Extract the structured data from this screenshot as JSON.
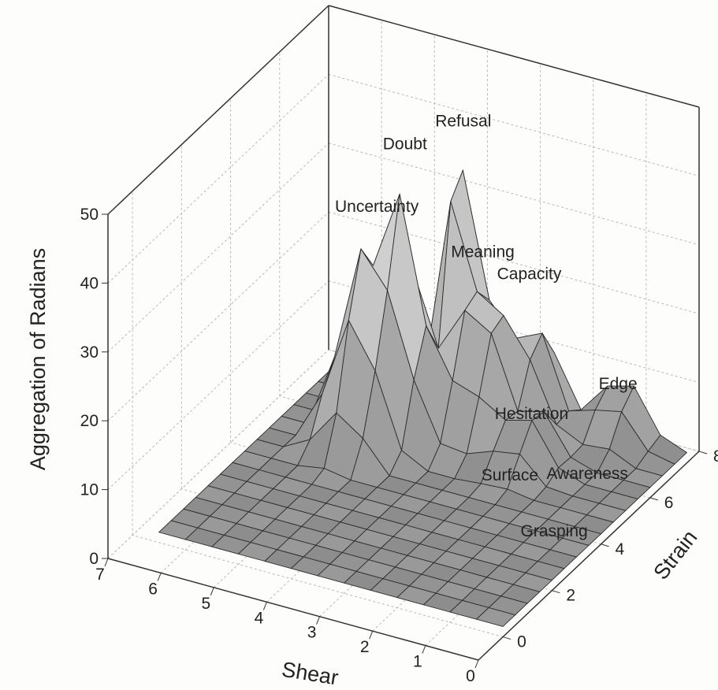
{
  "chart_data": {
    "type": "surface",
    "xlabel": "Shear",
    "ylabel": "Strain",
    "zlabel": "Aggregation of Radians",
    "x_ticks": [
      "0",
      "1",
      "2",
      "3",
      "4",
      "5",
      "6",
      "7"
    ],
    "y_ticks": [
      "0",
      "2",
      "4",
      "6",
      "8"
    ],
    "z_ticks": [
      "0",
      "10",
      "20",
      "30",
      "40",
      "50"
    ],
    "xlim": [
      0,
      7
    ],
    "ylim": [
      -1,
      8
    ],
    "zlim": [
      0,
      50
    ],
    "grid": true,
    "annotations": [
      {
        "text": "Doubt",
        "x": 4.4,
        "y": 5.5,
        "z": 43
      },
      {
        "text": "Refusal",
        "x": 3.9,
        "y": 6.8,
        "z": 43
      },
      {
        "text": "Uncertainty",
        "x": 4.7,
        "y": 5.0,
        "z": 35
      },
      {
        "text": "Meaning",
        "x": 3.3,
        "y": 6.3,
        "z": 27
      },
      {
        "text": "Capacity",
        "x": 2.7,
        "y": 6.9,
        "z": 23
      },
      {
        "text": "Hesitation",
        "x": 2.1,
        "y": 5.7,
        "z": 8
      },
      {
        "text": "Edge",
        "x": 1.3,
        "y": 7.5,
        "z": 8
      },
      {
        "text": "Surface",
        "x": 2.0,
        "y": 4.6,
        "z": 3
      },
      {
        "text": "Awareness",
        "x": 1.0,
        "y": 5.6,
        "z": 2
      },
      {
        "text": "Grasping",
        "x": 0.7,
        "y": 3.6,
        "z": 1
      }
    ],
    "peaks": [
      {
        "label": "Doubt",
        "x": 4.4,
        "y": 5.5,
        "z": 38
      },
      {
        "label": "Refusal",
        "x": 3.9,
        "y": 6.8,
        "z": 40
      },
      {
        "label": "Uncertainty",
        "x": 4.9,
        "y": 5.1,
        "z": 30
      },
      {
        "label": "Meaning",
        "x": 3.3,
        "y": 6.3,
        "z": 24
      },
      {
        "label": "Capacity",
        "x": 2.7,
        "y": 6.9,
        "z": 17
      },
      {
        "label": "Hesitation",
        "x": 2.2,
        "y": 5.7,
        "z": 10
      },
      {
        "label": "Edge",
        "x": 1.2,
        "y": 7.5,
        "z": 10
      }
    ]
  }
}
